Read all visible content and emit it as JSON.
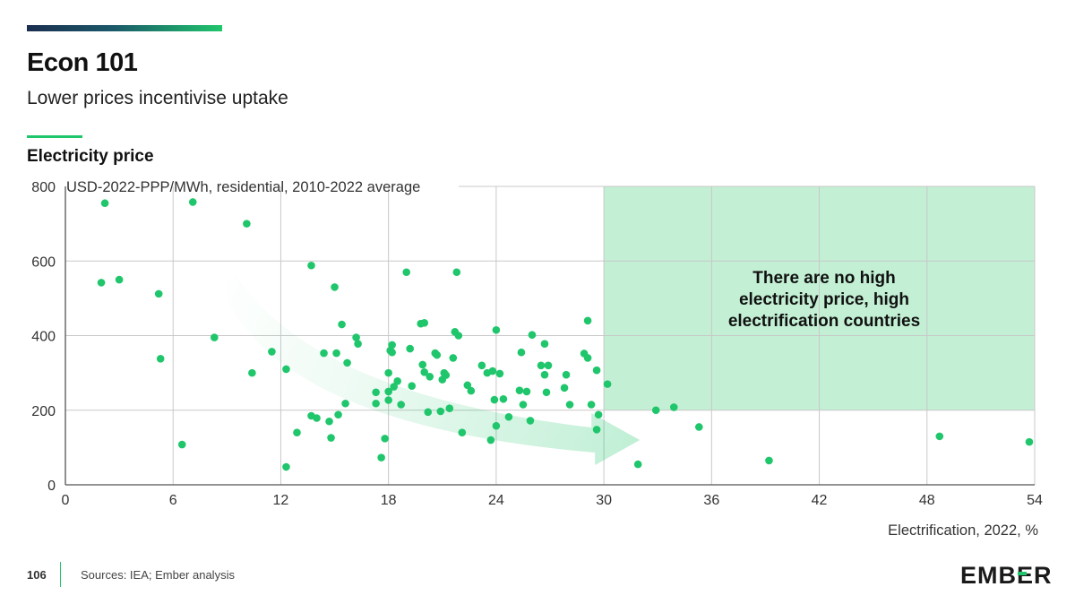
{
  "header": {
    "title": "Econ 101",
    "subtitle": "Lower prices incentivise uptake"
  },
  "chart_data": {
    "type": "scatter",
    "title": "Electricity price",
    "ylabel": "USD-2022-PPP/MWh, residential, 2010-2022 average",
    "xlabel": "Electrification, 2022, %",
    "xlim": [
      0,
      54
    ],
    "ylim": [
      0,
      800
    ],
    "xticks": [
      0,
      6,
      12,
      18,
      24,
      30,
      36,
      42,
      48,
      54
    ],
    "yticks": [
      0,
      200,
      400,
      600,
      800
    ],
    "grid": true,
    "colors": {
      "point": "#20c66c",
      "shade": "#c3f0d4",
      "grid": "#c8c8c8",
      "axis": "#555555"
    },
    "shaded_region": {
      "x": [
        30,
        54
      ],
      "y": [
        200,
        800
      ]
    },
    "annotation": "There are no high electricity price, high electrification countries",
    "trend_arrow": {
      "from": [
        9,
        550
      ],
      "to": [
        32,
        120
      ]
    },
    "series": [
      {
        "points": [
          [
            2.2,
            755
          ],
          [
            7.1,
            758
          ],
          [
            10.1,
            700
          ],
          [
            2.0,
            542
          ],
          [
            3.0,
            550
          ],
          [
            5.2,
            512
          ],
          [
            8.3,
            395
          ],
          [
            5.3,
            338
          ],
          [
            6.5,
            108
          ],
          [
            10.4,
            300
          ],
          [
            11.5,
            357
          ],
          [
            12.3,
            310
          ],
          [
            12.3,
            48
          ],
          [
            12.9,
            140
          ],
          [
            13.7,
            588
          ],
          [
            13.7,
            185
          ],
          [
            14.0,
            179
          ],
          [
            14.4,
            353
          ],
          [
            14.7,
            170
          ],
          [
            14.8,
            126
          ],
          [
            15.0,
            530
          ],
          [
            15.1,
            353
          ],
          [
            15.2,
            188
          ],
          [
            15.4,
            430
          ],
          [
            15.6,
            218
          ],
          [
            15.7,
            327
          ],
          [
            16.2,
            395
          ],
          [
            16.3,
            378
          ],
          [
            17.3,
            248
          ],
          [
            17.3,
            218
          ],
          [
            17.6,
            73
          ],
          [
            17.8,
            124
          ],
          [
            18.0,
            227
          ],
          [
            18.0,
            250
          ],
          [
            18.0,
            300
          ],
          [
            18.1,
            360
          ],
          [
            18.2,
            375
          ],
          [
            18.2,
            355
          ],
          [
            18.3,
            263
          ],
          [
            18.5,
            278
          ],
          [
            18.7,
            215
          ],
          [
            19.0,
            570
          ],
          [
            19.2,
            365
          ],
          [
            19.3,
            265
          ],
          [
            19.8,
            432
          ],
          [
            19.9,
            322
          ],
          [
            20.0,
            434
          ],
          [
            20.0,
            302
          ],
          [
            20.2,
            195
          ],
          [
            20.3,
            290
          ],
          [
            20.6,
            353
          ],
          [
            20.7,
            348
          ],
          [
            20.9,
            197
          ],
          [
            21.0,
            282
          ],
          [
            21.1,
            300
          ],
          [
            21.2,
            294
          ],
          [
            21.4,
            205
          ],
          [
            21.6,
            340
          ],
          [
            21.7,
            410
          ],
          [
            21.8,
            570
          ],
          [
            21.9,
            400
          ],
          [
            22.1,
            140
          ],
          [
            22.4,
            267
          ],
          [
            22.6,
            252
          ],
          [
            23.2,
            320
          ],
          [
            23.5,
            300
          ],
          [
            23.7,
            120
          ],
          [
            23.8,
            305
          ],
          [
            23.9,
            228
          ],
          [
            24.0,
            415
          ],
          [
            24.0,
            158
          ],
          [
            24.2,
            298
          ],
          [
            24.4,
            230
          ],
          [
            24.7,
            182
          ],
          [
            25.3,
            253
          ],
          [
            25.4,
            355
          ],
          [
            25.5,
            215
          ],
          [
            25.7,
            250
          ],
          [
            25.9,
            172
          ],
          [
            26.0,
            402
          ],
          [
            26.5,
            320
          ],
          [
            26.7,
            378
          ],
          [
            26.7,
            295
          ],
          [
            26.8,
            248
          ],
          [
            26.9,
            320
          ],
          [
            27.8,
            260
          ],
          [
            27.9,
            295
          ],
          [
            28.1,
            215
          ],
          [
            28.9,
            352
          ],
          [
            29.1,
            440
          ],
          [
            29.1,
            340
          ],
          [
            29.3,
            215
          ],
          [
            29.6,
            307
          ],
          [
            29.6,
            148
          ],
          [
            29.7,
            188
          ],
          [
            30.2,
            270
          ],
          [
            31.9,
            55
          ],
          [
            32.9,
            200
          ],
          [
            33.9,
            208
          ],
          [
            35.3,
            155
          ],
          [
            39.2,
            65
          ],
          [
            48.7,
            130
          ],
          [
            53.7,
            115
          ]
        ]
      }
    ]
  },
  "footer": {
    "page_number": "106",
    "sources": "Sources: IEA; Ember analysis",
    "logo_text": "EMBER"
  }
}
